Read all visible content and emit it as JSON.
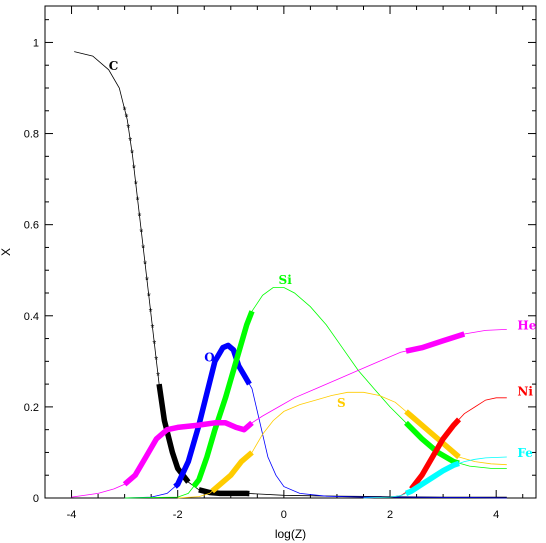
{
  "chart_data": {
    "type": "line",
    "title": "",
    "xlabel": "log(Z)",
    "ylabel": "X",
    "xlim": [
      -4.5,
      4.75
    ],
    "ylim": [
      0,
      1.08
    ],
    "xticks": [
      -4,
      -2,
      0,
      2,
      4
    ],
    "yticks": [
      0,
      0.2,
      0.4,
      0.6,
      0.8,
      1
    ],
    "xtick_labels": [
      "-4",
      "-2",
      "0",
      "2",
      "4"
    ],
    "ytick_labels": [
      "0",
      "0.2",
      "0.4",
      "0.6",
      "0.8",
      "1"
    ],
    "grid": false,
    "legend": "none",
    "series": [
      {
        "name": "C",
        "color": "#000000",
        "label_at": [
          -3.3,
          0.94
        ],
        "points": [
          [
            -3.95,
            0.98
          ],
          [
            -3.6,
            0.97
          ],
          [
            -3.3,
            0.94
          ],
          [
            -3.1,
            0.9
          ],
          [
            -2.95,
            0.83
          ],
          [
            -2.85,
            0.75
          ],
          [
            -2.75,
            0.65
          ],
          [
            -2.65,
            0.55
          ],
          [
            -2.55,
            0.45
          ],
          [
            -2.45,
            0.35
          ],
          [
            -2.35,
            0.25
          ],
          [
            -2.25,
            0.17
          ],
          [
            -2.1,
            0.1
          ],
          [
            -2.0,
            0.065
          ],
          [
            -1.8,
            0.035
          ],
          [
            -1.6,
            0.018
          ],
          [
            -1.4,
            0.012
          ],
          [
            -1.2,
            0.01
          ],
          [
            -0.7,
            0.01
          ],
          [
            0.0,
            0.006
          ],
          [
            1.0,
            0.004
          ],
          [
            2.0,
            0.003
          ],
          [
            3.0,
            0.002
          ],
          [
            4.2,
            0.002
          ]
        ],
        "thick": [
          [
            -2.35,
            -1.8
          ],
          [
            -1.6,
            -0.65
          ]
        ],
        "stars": [
          -3.0,
          -2.25
        ]
      },
      {
        "name": "O",
        "color": "#0000ff",
        "label_at": [
          -1.5,
          0.3
        ],
        "points": [
          [
            -3.0,
            0.0
          ],
          [
            -2.5,
            0.002
          ],
          [
            -2.2,
            0.01
          ],
          [
            -2.0,
            0.03
          ],
          [
            -1.8,
            0.08
          ],
          [
            -1.6,
            0.16
          ],
          [
            -1.45,
            0.23
          ],
          [
            -1.3,
            0.3
          ],
          [
            -1.15,
            0.33
          ],
          [
            -1.05,
            0.335
          ],
          [
            -0.95,
            0.325
          ],
          [
            -0.85,
            0.29
          ],
          [
            -0.75,
            0.27
          ],
          [
            -0.6,
            0.24
          ],
          [
            -0.5,
            0.19
          ],
          [
            -0.4,
            0.14
          ],
          [
            -0.3,
            0.09
          ],
          [
            -0.15,
            0.05
          ],
          [
            0.0,
            0.025
          ],
          [
            0.3,
            0.01
          ],
          [
            0.8,
            0.004
          ],
          [
            1.5,
            0.002
          ],
          [
            2.3,
            0.002
          ],
          [
            3.4,
            0.001
          ],
          [
            4.2,
            0.0
          ]
        ],
        "thick": [
          [
            -2.05,
            -0.65
          ]
        ]
      },
      {
        "name": "Si",
        "color": "#00ff00",
        "label_at": [
          -0.1,
          0.47
        ],
        "points": [
          [
            -3.0,
            0.0
          ],
          [
            -2.0,
            0.002
          ],
          [
            -1.8,
            0.01
          ],
          [
            -1.6,
            0.04
          ],
          [
            -1.45,
            0.09
          ],
          [
            -1.3,
            0.15
          ],
          [
            -1.1,
            0.22
          ],
          [
            -0.9,
            0.3
          ],
          [
            -0.7,
            0.38
          ],
          [
            -0.6,
            0.41
          ],
          [
            -0.4,
            0.445
          ],
          [
            -0.2,
            0.462
          ],
          [
            0.0,
            0.462
          ],
          [
            0.2,
            0.45
          ],
          [
            0.5,
            0.42
          ],
          [
            0.8,
            0.38
          ],
          [
            1.1,
            0.33
          ],
          [
            1.4,
            0.28
          ],
          [
            1.7,
            0.24
          ],
          [
            2.0,
            0.2
          ],
          [
            2.3,
            0.165
          ],
          [
            2.6,
            0.13
          ],
          [
            2.9,
            0.1
          ],
          [
            3.2,
            0.08
          ],
          [
            3.5,
            0.07
          ],
          [
            3.9,
            0.065
          ],
          [
            4.2,
            0.065
          ]
        ],
        "thick": [
          [
            -1.7,
            -0.6
          ],
          [
            2.3,
            3.3
          ]
        ]
      },
      {
        "name": "He",
        "color": "#ff00ff",
        "label_at": [
          4.4,
          0.37
        ],
        "points": [
          [
            -4.0,
            0.002
          ],
          [
            -3.5,
            0.01
          ],
          [
            -3.2,
            0.02
          ],
          [
            -3.0,
            0.03
          ],
          [
            -2.8,
            0.05
          ],
          [
            -2.6,
            0.09
          ],
          [
            -2.4,
            0.13
          ],
          [
            -2.2,
            0.15
          ],
          [
            -2.0,
            0.155
          ],
          [
            -1.6,
            0.16
          ],
          [
            -1.3,
            0.165
          ],
          [
            -1.1,
            0.165
          ],
          [
            -0.9,
            0.155
          ],
          [
            -0.75,
            0.15
          ],
          [
            -0.6,
            0.165
          ],
          [
            -0.4,
            0.18
          ],
          [
            -0.1,
            0.2
          ],
          [
            0.2,
            0.22
          ],
          [
            0.6,
            0.24
          ],
          [
            1.0,
            0.26
          ],
          [
            1.4,
            0.28
          ],
          [
            1.8,
            0.3
          ],
          [
            2.2,
            0.32
          ],
          [
            2.6,
            0.33
          ],
          [
            3.0,
            0.345
          ],
          [
            3.4,
            0.36
          ],
          [
            3.8,
            0.368
          ],
          [
            4.2,
            0.37
          ]
        ],
        "thick": [
          [
            -3.0,
            -0.6
          ],
          [
            2.3,
            3.4
          ]
        ]
      },
      {
        "name": "S",
        "color": "#ffcc00",
        "label_at": [
          1.0,
          0.2
        ],
        "points": [
          [
            -2.0,
            0.0
          ],
          [
            -1.6,
            0.003
          ],
          [
            -1.4,
            0.01
          ],
          [
            -1.2,
            0.03
          ],
          [
            -1.0,
            0.05
          ],
          [
            -0.8,
            0.08
          ],
          [
            -0.6,
            0.1
          ],
          [
            -0.4,
            0.14
          ],
          [
            -0.2,
            0.17
          ],
          [
            0.0,
            0.19
          ],
          [
            0.3,
            0.205
          ],
          [
            0.6,
            0.215
          ],
          [
            0.9,
            0.225
          ],
          [
            1.2,
            0.232
          ],
          [
            1.5,
            0.232
          ],
          [
            1.8,
            0.225
          ],
          [
            2.1,
            0.21
          ],
          [
            2.4,
            0.18
          ],
          [
            2.7,
            0.15
          ],
          [
            3.0,
            0.12
          ],
          [
            3.3,
            0.09
          ],
          [
            3.6,
            0.08
          ],
          [
            3.9,
            0.075
          ],
          [
            4.2,
            0.073
          ]
        ],
        "thick": [
          [
            -1.35,
            -0.6
          ],
          [
            2.3,
            3.3
          ]
        ]
      },
      {
        "name": "Ni",
        "color": "#ff0000",
        "label_at": [
          4.4,
          0.225
        ],
        "points": [
          [
            1.5,
            0.0
          ],
          [
            2.0,
            0.002
          ],
          [
            2.2,
            0.005
          ],
          [
            2.4,
            0.02
          ],
          [
            2.6,
            0.05
          ],
          [
            2.8,
            0.09
          ],
          [
            3.0,
            0.13
          ],
          [
            3.2,
            0.16
          ],
          [
            3.4,
            0.185
          ],
          [
            3.6,
            0.2
          ],
          [
            3.8,
            0.215
          ],
          [
            4.0,
            0.22
          ],
          [
            4.2,
            0.22
          ]
        ],
        "thick": [
          [
            2.4,
            3.3
          ]
        ]
      },
      {
        "name": "Fe",
        "color": "#00ffff",
        "label_at": [
          4.4,
          0.09
        ],
        "points": [
          [
            1.5,
            0.0
          ],
          [
            2.0,
            0.002
          ],
          [
            2.2,
            0.005
          ],
          [
            2.4,
            0.015
          ],
          [
            2.6,
            0.03
          ],
          [
            2.8,
            0.045
          ],
          [
            3.0,
            0.06
          ],
          [
            3.2,
            0.072
          ],
          [
            3.4,
            0.08
          ],
          [
            3.6,
            0.085
          ],
          [
            3.8,
            0.088
          ],
          [
            4.2,
            0.09
          ]
        ],
        "thick": [
          [
            2.3,
            3.3
          ]
        ]
      }
    ]
  }
}
